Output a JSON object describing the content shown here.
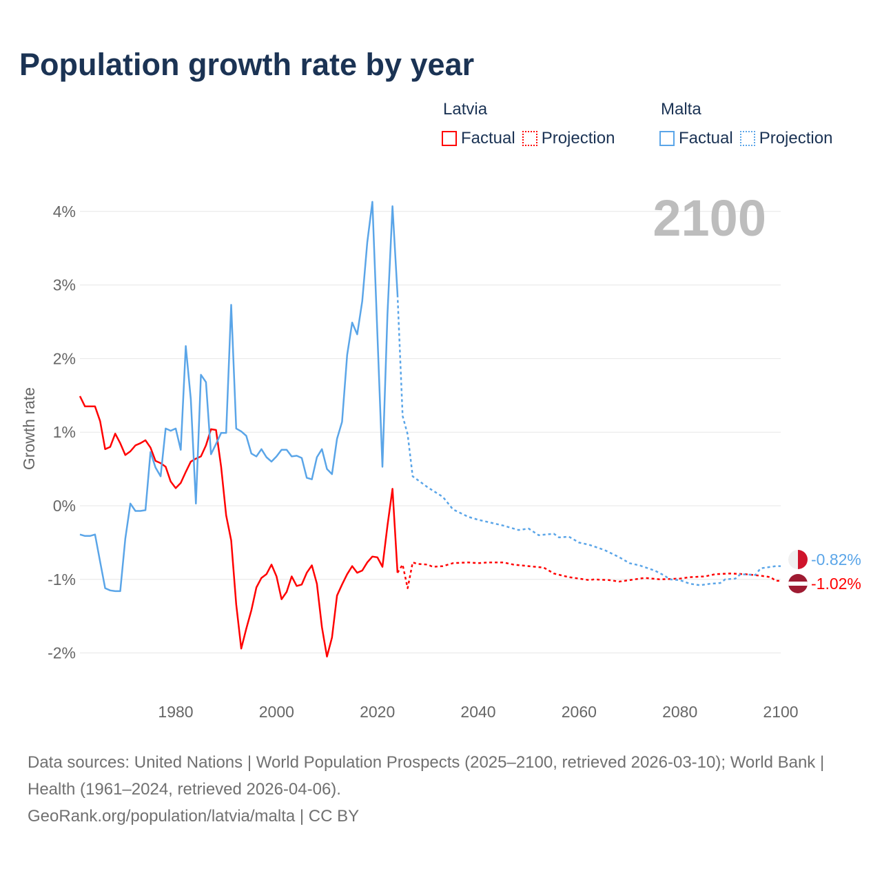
{
  "title": "Population growth rate by year",
  "legend": {
    "groups": [
      {
        "name": "Latvia",
        "factual": "Factual",
        "projection": "Projection",
        "color": "#ff0000"
      },
      {
        "name": "Malta",
        "factual": "Factual",
        "projection": "Projection",
        "color": "#5aa5e8"
      }
    ]
  },
  "year_label": "2100",
  "footer": {
    "sources": "Data sources: United Nations | World Population Prospects (2025–2100, retrieved 2026-03-10); World Bank | Health (1961–2024, retrieved 2026-04-06).",
    "credit": "GeoRank.org/population/latvia/malta | CC BY"
  },
  "chart_data": {
    "type": "line",
    "title": "Population growth rate by year",
    "xlabel": "",
    "ylabel": "Growth rate",
    "xlim": [
      1961,
      2100
    ],
    "ylim": [
      -2.5,
      4.3
    ],
    "xticks": [
      1980,
      2000,
      2020,
      2040,
      2060,
      2080,
      2100
    ],
    "yticks": [
      -2,
      -1,
      0,
      1,
      2,
      3,
      4
    ],
    "ytick_labels": [
      "-2%",
      "-1%",
      "0%",
      "1%",
      "2%",
      "3%",
      "4%"
    ],
    "grid": true,
    "legend_position": "top-right",
    "series": [
      {
        "name": "Latvia Factual",
        "country": "Latvia",
        "style": "solid",
        "color": "#ff0000",
        "x": [
          1961,
          1962,
          1963,
          1964,
          1965,
          1966,
          1967,
          1968,
          1969,
          1970,
          1971,
          1972,
          1973,
          1974,
          1975,
          1976,
          1977,
          1978,
          1979,
          1980,
          1981,
          1982,
          1983,
          1984,
          1985,
          1986,
          1987,
          1988,
          1989,
          1990,
          1991,
          1992,
          1993,
          1994,
          1995,
          1996,
          1997,
          1998,
          1999,
          2000,
          2001,
          2002,
          2003,
          2004,
          2005,
          2006,
          2007,
          2008,
          2009,
          2010,
          2011,
          2012,
          2013,
          2014,
          2015,
          2016,
          2017,
          2018,
          2019,
          2020,
          2021,
          2022,
          2023,
          2024
        ],
        "y": [
          1.49,
          1.35,
          1.35,
          1.35,
          1.15,
          0.77,
          0.8,
          0.98,
          0.85,
          0.69,
          0.74,
          0.82,
          0.85,
          0.89,
          0.79,
          0.61,
          0.58,
          0.53,
          0.33,
          0.24,
          0.31,
          0.46,
          0.6,
          0.64,
          0.67,
          0.82,
          1.04,
          1.03,
          0.53,
          -0.13,
          -0.47,
          -1.34,
          -1.94,
          -1.67,
          -1.42,
          -1.11,
          -0.98,
          -0.93,
          -0.8,
          -0.96,
          -1.27,
          -1.17,
          -0.96,
          -1.09,
          -1.07,
          -0.91,
          -0.81,
          -1.06,
          -1.65,
          -2.05,
          -1.79,
          -1.22,
          -1.07,
          -0.93,
          -0.82,
          -0.91,
          -0.88,
          -0.77,
          -0.69,
          -0.7,
          -0.83,
          -0.27,
          0.23,
          -0.91
        ]
      },
      {
        "name": "Latvia Projection",
        "country": "Latvia",
        "style": "dotted",
        "color": "#ff0000",
        "x": [
          2024,
          2025,
          2026,
          2027,
          2028,
          2030,
          2031,
          2033,
          2035,
          2038,
          2040,
          2042,
          2045,
          2047,
          2050,
          2053,
          2055,
          2058,
          2060,
          2062,
          2063,
          2066,
          2068,
          2070,
          2073,
          2076,
          2080,
          2082,
          2085,
          2087,
          2090,
          2093,
          2096,
          2098,
          2099,
          2100
        ],
        "y": [
          -0.91,
          -0.8,
          -1.12,
          -0.77,
          -0.79,
          -0.8,
          -0.83,
          -0.82,
          -0.78,
          -0.77,
          -0.78,
          -0.77,
          -0.77,
          -0.8,
          -0.82,
          -0.84,
          -0.92,
          -0.97,
          -0.99,
          -1.01,
          -1.0,
          -1.01,
          -1.03,
          -1.01,
          -0.98,
          -1.0,
          -0.99,
          -0.97,
          -0.96,
          -0.93,
          -0.92,
          -0.93,
          -0.95,
          -0.97,
          -1.02,
          -1.02
        ]
      },
      {
        "name": "Malta Factual",
        "country": "Malta",
        "style": "solid",
        "color": "#5aa5e8",
        "x": [
          1961,
          1962,
          1963,
          1964,
          1965,
          1966,
          1967,
          1968,
          1969,
          1970,
          1971,
          1972,
          1973,
          1974,
          1975,
          1976,
          1977,
          1978,
          1979,
          1980,
          1981,
          1982,
          1983,
          1984,
          1985,
          1986,
          1987,
          1988,
          1989,
          1990,
          1991,
          1992,
          1993,
          1994,
          1995,
          1996,
          1997,
          1998,
          1999,
          2000,
          2001,
          2002,
          2003,
          2004,
          2005,
          2006,
          2007,
          2008,
          2009,
          2010,
          2011,
          2012,
          2013,
          2014,
          2015,
          2016,
          2017,
          2018,
          2019,
          2020,
          2021,
          2022,
          2023,
          2024
        ],
        "y": [
          -0.39,
          -0.41,
          -0.41,
          -0.39,
          -0.76,
          -1.12,
          -1.15,
          -1.16,
          -1.16,
          -0.45,
          0.03,
          -0.07,
          -0.07,
          -0.06,
          0.73,
          0.52,
          0.4,
          1.05,
          1.02,
          1.05,
          0.76,
          2.17,
          1.45,
          0.03,
          1.78,
          1.68,
          0.7,
          0.84,
          0.99,
          0.99,
          2.73,
          1.05,
          1.01,
          0.95,
          0.71,
          0.67,
          0.77,
          0.66,
          0.6,
          0.67,
          0.76,
          0.76,
          0.67,
          0.68,
          0.65,
          0.38,
          0.36,
          0.66,
          0.77,
          0.5,
          0.43,
          0.91,
          1.14,
          2.05,
          2.49,
          2.33,
          2.78,
          3.58,
          4.13,
          2.33,
          0.53,
          2.6,
          4.07,
          2.87
        ]
      },
      {
        "name": "Malta Projection",
        "country": "Malta",
        "style": "dotted",
        "color": "#5aa5e8",
        "x": [
          2024,
          2025,
          2026,
          2027,
          2028,
          2030,
          2033,
          2035,
          2038,
          2040,
          2045,
          2048,
          2050,
          2052,
          2055,
          2056,
          2058,
          2060,
          2062,
          2065,
          2068,
          2070,
          2072,
          2075,
          2077,
          2078,
          2080,
          2082,
          2084,
          2086,
          2088,
          2089,
          2091,
          2092,
          2095,
          2096,
          2099,
          2100
        ],
        "y": [
          2.87,
          1.22,
          0.97,
          0.4,
          0.35,
          0.25,
          0.12,
          -0.05,
          -0.15,
          -0.19,
          -0.27,
          -0.33,
          -0.31,
          -0.4,
          -0.38,
          -0.43,
          -0.42,
          -0.5,
          -0.53,
          -0.6,
          -0.7,
          -0.78,
          -0.81,
          -0.88,
          -0.95,
          -1.0,
          -1.01,
          -1.06,
          -1.08,
          -1.06,
          -1.05,
          -1.0,
          -0.99,
          -0.93,
          -0.94,
          -0.85,
          -0.82,
          -0.82
        ]
      }
    ],
    "end_labels": [
      {
        "country": "Malta",
        "text": "-0.82%",
        "value": -0.82,
        "color": "#5aa5e8"
      },
      {
        "country": "Latvia",
        "text": "-1.02%",
        "value": -1.02,
        "color": "#ff0000"
      }
    ]
  }
}
